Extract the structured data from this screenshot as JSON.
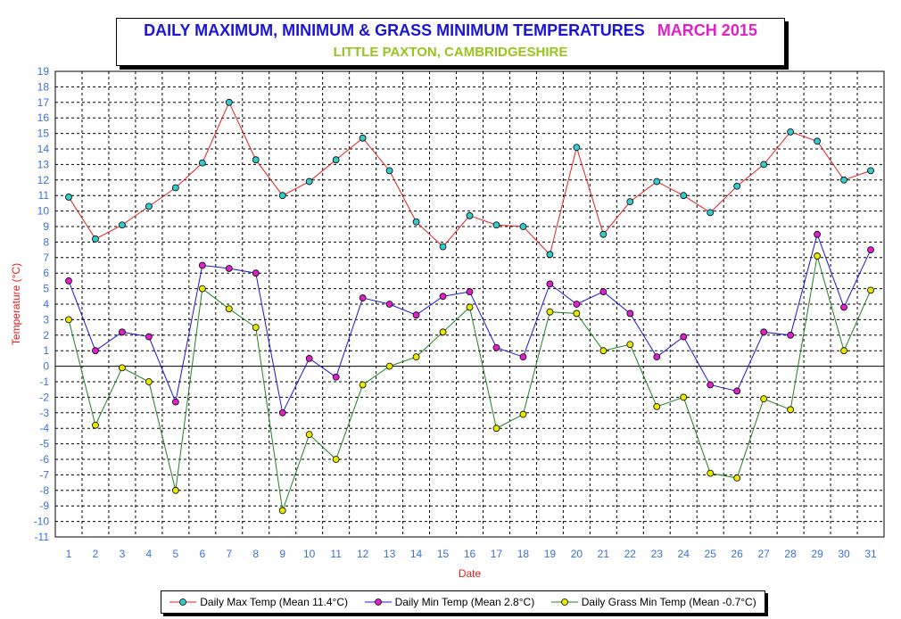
{
  "title": {
    "main": "DAILY MAXIMUM, MINIMUM & GRASS MINIMUM TEMPERATURES",
    "period": "MARCH 2015",
    "subtitle": "LITTLE PAXTON, CAMBRIDGESHIRE"
  },
  "colors": {
    "title_main": "#1a14d6",
    "title_period": "#e020c8",
    "subtitle": "#9ac41a",
    "axis_label": "#e02020",
    "tick_label": "#3a6fe0",
    "max_line": "#e02020",
    "max_marker": "#33cccc",
    "min_line": "#1a14d6",
    "min_marker": "#e020c8",
    "grass_line": "#208020",
    "grass_marker": "#e8e800"
  },
  "chart_data": {
    "type": "line",
    "title": "DAILY MAXIMUM, MINIMUM & GRASS MINIMUM TEMPERATURES",
    "xlabel": "Date",
    "ylabel": "Temperature (°C)",
    "ylim": [
      -11,
      19
    ],
    "grid": true,
    "legend_position": "bottom",
    "x": [
      1,
      2,
      3,
      4,
      5,
      6,
      7,
      8,
      9,
      10,
      11,
      12,
      13,
      14,
      15,
      16,
      17,
      18,
      19,
      20,
      21,
      22,
      23,
      24,
      25,
      26,
      27,
      28,
      29,
      30,
      31
    ],
    "y_ticks": [
      19,
      18,
      17,
      16,
      15,
      14,
      13,
      12,
      11,
      10,
      9,
      8,
      7,
      6,
      5,
      4,
      3,
      2,
      1,
      0,
      -1,
      -2,
      -3,
      -4,
      -5,
      -6,
      -7,
      -8,
      -9,
      -10,
      -11
    ],
    "series": [
      {
        "name": "Daily Max Temp (Mean 11.4°C)",
        "values": [
          10.9,
          8.2,
          9.1,
          10.3,
          11.5,
          13.1,
          17.0,
          13.3,
          11.0,
          11.9,
          13.3,
          14.7,
          12.6,
          9.3,
          7.7,
          9.7,
          9.1,
          9.0,
          7.2,
          14.1,
          8.5,
          10.6,
          11.9,
          11.0,
          9.9,
          11.6,
          13.0,
          15.1,
          14.5,
          12.0,
          12.6
        ]
      },
      {
        "name": "Daily Min Temp (Mean 2.8°C)",
        "values": [
          5.5,
          1.0,
          2.2,
          1.9,
          -2.3,
          6.5,
          6.3,
          6.0,
          -3.0,
          0.5,
          -0.7,
          4.4,
          4.0,
          3.3,
          4.5,
          4.8,
          1.2,
          0.6,
          5.3,
          4.0,
          4.8,
          3.4,
          0.6,
          1.9,
          -1.2,
          -1.6,
          2.2,
          2.0,
          8.5,
          3.8,
          7.5
        ]
      },
      {
        "name": "Daily Grass Min Temp (Mean -0.7°C)",
        "values": [
          3.0,
          -3.8,
          -0.1,
          -1.0,
          -8.0,
          5.0,
          3.7,
          2.5,
          -9.3,
          -4.4,
          -6.0,
          -1.2,
          0.0,
          0.6,
          2.2,
          3.8,
          -4.0,
          -3.1,
          3.5,
          3.4,
          1.0,
          1.4,
          -2.6,
          -2.0,
          -6.9,
          -7.2,
          -2.1,
          -2.8,
          7.1,
          1.0,
          4.9
        ]
      }
    ]
  }
}
